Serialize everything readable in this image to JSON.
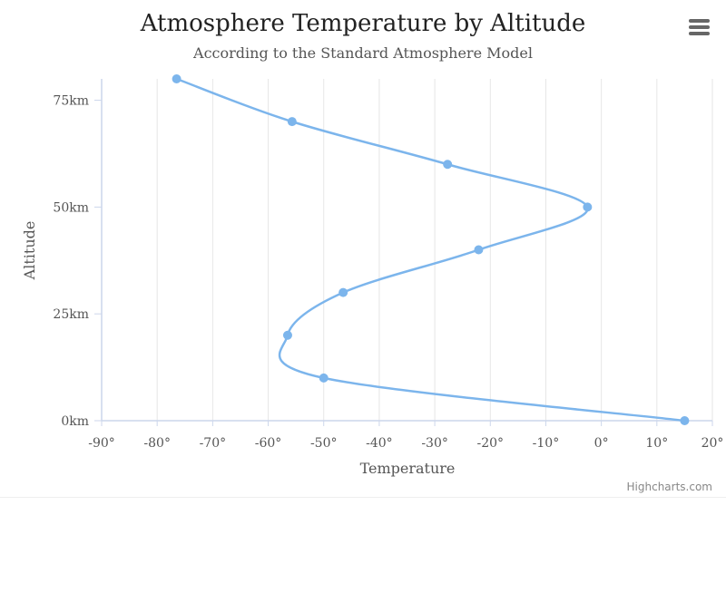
{
  "chart_data": {
    "type": "line",
    "inverted": true,
    "title": "Atmosphere Temperature by Altitude",
    "subtitle": "According to the Standard Atmosphere Model",
    "xlabel": "Temperature",
    "ylabel": "Altitude",
    "x_unit_suffix": "°",
    "y_unit_suffix": "km",
    "xlim": [
      -90,
      20
    ],
    "ylim": [
      0,
      80
    ],
    "x_ticks": [
      -90,
      -80,
      -70,
      -60,
      -50,
      -40,
      -30,
      -20,
      -10,
      0,
      10,
      20
    ],
    "y_ticks": [
      0,
      25,
      50,
      75
    ],
    "x_grid": true,
    "y_grid": false,
    "spline": true,
    "color": "#7cb5ec",
    "series": [
      {
        "points": [
          {
            "x": 15,
            "y": 0
          },
          {
            "x": -50,
            "y": 10
          },
          {
            "x": -56.5,
            "y": 20
          },
          {
            "x": -46.5,
            "y": 30
          },
          {
            "x": -22.1,
            "y": 40
          },
          {
            "x": -2.5,
            "y": 50
          },
          {
            "x": -27.7,
            "y": 60
          },
          {
            "x": -55.7,
            "y": 70
          },
          {
            "x": -76.5,
            "y": 80
          }
        ]
      }
    ],
    "credits": "Highcharts.com"
  },
  "menu_icon": "hamburger-menu-icon"
}
